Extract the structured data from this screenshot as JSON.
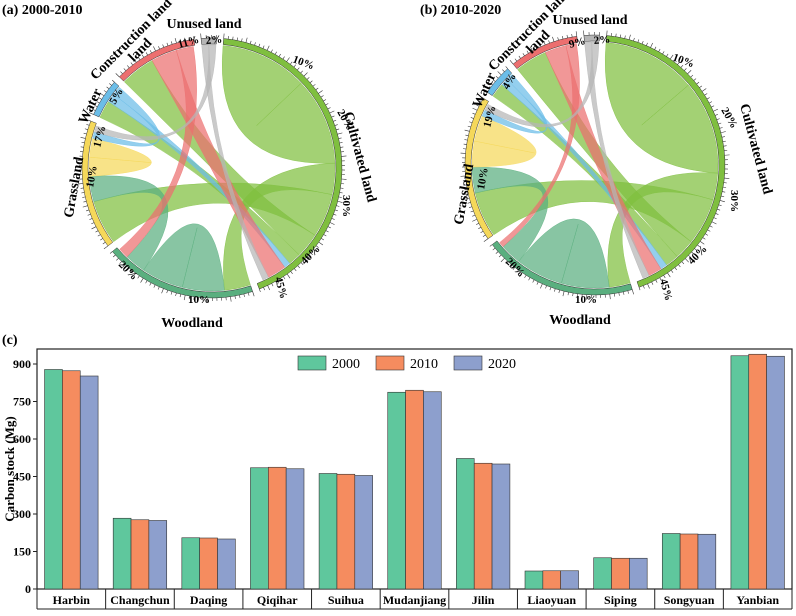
{
  "colors": {
    "Cultivated land": "#7fbf3f",
    "Woodland": "#5aaf7f",
    "Grassland": "#f5d85a",
    "Water": "#6bbde8",
    "Construction land": "#ec6f6f",
    "Unused land": "#b5b5b5",
    "bar2000": "#5fc79d",
    "bar2010": "#f58c5f",
    "bar2020": "#8d9fcd"
  },
  "panel_a": {
    "label": "(a) 2000-2010",
    "sectors": [
      {
        "name": "Cultivated land",
        "label": "Cultivated land",
        "share": 0.45,
        "ticks": [
          "10%",
          "20%",
          "30%",
          "40%",
          "45%"
        ]
      },
      {
        "name": "Woodland",
        "label": "Woodland",
        "share": 0.2,
        "ticks": [
          "10%",
          "20%"
        ]
      },
      {
        "name": "Grassland",
        "label": "Grassland",
        "share": 0.17,
        "ticks": [
          "10%",
          "17%"
        ]
      },
      {
        "name": "Water",
        "label": "Water",
        "share": 0.05,
        "ticks": [
          "5%"
        ]
      },
      {
        "name": "Construction land",
        "label": "Construction land",
        "share": 0.11,
        "ticks": [
          "11%"
        ]
      },
      {
        "name": "Unused land",
        "label": "Unused land",
        "share": 0.02,
        "ticks": [
          "2%"
        ]
      }
    ]
  },
  "panel_b": {
    "label": "(b) 2010-2020",
    "sectors": [
      {
        "name": "Cultivated land",
        "label": "Cultivated land",
        "share": 0.45,
        "ticks": [
          "10%",
          "20%",
          "30%",
          "40%",
          "45%"
        ]
      },
      {
        "name": "Woodland",
        "label": "Woodland",
        "share": 0.2,
        "ticks": [
          "10%",
          "20%"
        ]
      },
      {
        "name": "Grassland",
        "label": "Grassland",
        "share": 0.19,
        "ticks": [
          "10%",
          "19%"
        ]
      },
      {
        "name": "Water",
        "label": "Water",
        "share": 0.04,
        "ticks": [
          "4%"
        ]
      },
      {
        "name": "Construction land",
        "label": "Construction land",
        "share": 0.09,
        "ticks": [
          "9%"
        ]
      },
      {
        "name": "Unused land",
        "label": "Unused land",
        "share": 0.02,
        "ticks": [
          "2%"
        ]
      }
    ]
  },
  "chart_data": [
    {
      "type": "chord",
      "title": "(a) 2000-2010",
      "sectors": [
        "Cultivated land",
        "Woodland",
        "Grassland",
        "Water",
        "Construction land",
        "Unused land"
      ],
      "shares_percent": [
        45,
        20,
        17,
        5,
        11,
        2
      ],
      "links": [
        [
          "Cultivated land",
          "Cultivated land",
          0.14
        ],
        [
          "Cultivated land",
          "Woodland",
          0.05
        ],
        [
          "Cultivated land",
          "Grassland",
          0.07
        ],
        [
          "Cultivated land",
          "Construction land",
          0.04
        ],
        [
          "Cultivated land",
          "Water",
          0.02
        ],
        [
          "Woodland",
          "Woodland",
          0.08
        ],
        [
          "Woodland",
          "Grassland",
          0.04
        ],
        [
          "Grassland",
          "Grassland",
          0.03
        ],
        [
          "Water",
          "Cultivated land",
          0.01
        ],
        [
          "Water",
          "Grassland",
          0.01
        ],
        [
          "Construction land",
          "Cultivated land",
          0.03
        ],
        [
          "Construction land",
          "Woodland",
          0.02
        ],
        [
          "Unused land",
          "Cultivated land",
          0.01
        ],
        [
          "Unused land",
          "Grassland",
          0.01
        ]
      ]
    },
    {
      "type": "chord",
      "title": "(b) 2010-2020",
      "sectors": [
        "Cultivated land",
        "Woodland",
        "Grassland",
        "Water",
        "Construction land",
        "Unused land"
      ],
      "shares_percent": [
        45,
        20,
        19,
        4,
        9,
        2
      ],
      "links": [
        [
          "Cultivated land",
          "Cultivated land",
          0.14
        ],
        [
          "Cultivated land",
          "Woodland",
          0.04
        ],
        [
          "Cultivated land",
          "Grassland",
          0.07
        ],
        [
          "Cultivated land",
          "Construction land",
          0.03
        ],
        [
          "Cultivated land",
          "Water",
          0.02
        ],
        [
          "Woodland",
          "Woodland",
          0.09
        ],
        [
          "Woodland",
          "Grassland",
          0.04
        ],
        [
          "Grassland",
          "Grassland",
          0.04
        ],
        [
          "Water",
          "Cultivated land",
          0.01
        ],
        [
          "Water",
          "Grassland",
          0.01
        ],
        [
          "Construction land",
          "Cultivated land",
          0.02
        ],
        [
          "Construction land",
          "Woodland",
          0.01
        ],
        [
          "Unused land",
          "Cultivated land",
          0.01
        ],
        [
          "Unused land",
          "Grassland",
          0.01
        ]
      ]
    },
    {
      "type": "bar",
      "title": "(c)",
      "categories": [
        "Harbin",
        "Changchun",
        "Daqing",
        "Qiqihar",
        "Suihua",
        "Mudanjiang",
        "Jilin",
        "Liaoyuan",
        "Siping",
        "Songyuan",
        "Yanbian"
      ],
      "series": [
        {
          "name": "2000",
          "values": [
            878,
            283,
            205,
            485,
            462,
            787,
            522,
            72,
            125,
            222,
            933
          ]
        },
        {
          "name": "2010",
          "values": [
            873,
            277,
            204,
            487,
            459,
            795,
            503,
            73,
            123,
            220,
            939
          ]
        },
        {
          "name": "2020",
          "values": [
            852,
            274,
            200,
            481,
            454,
            789,
            500,
            73,
            123,
            219,
            931
          ]
        }
      ],
      "ylabel": "Carbon stock (Mg)",
      "xlabel": "",
      "ylim": [
        0,
        960
      ],
      "yticks": [
        0,
        150,
        300,
        450,
        600,
        750,
        900
      ],
      "legend": [
        "2000",
        "2010",
        "2020"
      ],
      "legend_position": "top-center"
    }
  ]
}
